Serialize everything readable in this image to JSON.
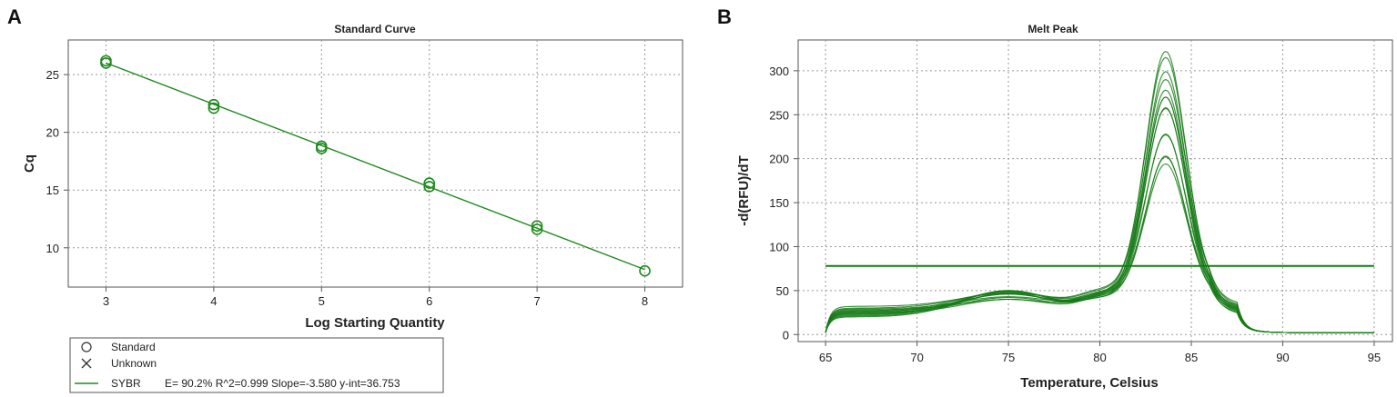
{
  "panels": {
    "a_label": "A",
    "b_label": "B"
  },
  "colors": {
    "series": "#1e8a1e",
    "melt": "#157a15",
    "grid": "#999999",
    "frame": "#555555"
  },
  "chart_data": [
    {
      "type": "scatter",
      "title": "Standard Curve",
      "xlabel": "Log Starting Quantity",
      "ylabel": "Cq",
      "xlim": [
        2.65,
        8.35
      ],
      "ylim": [
        6.6,
        28.0
      ],
      "x_ticks": [
        3,
        4,
        5,
        6,
        7,
        8
      ],
      "y_ticks": [
        10,
        15,
        20,
        25
      ],
      "grid": true,
      "legend_position": "bottom-left",
      "legend": [
        {
          "symbol": "circle",
          "label": "Standard"
        },
        {
          "symbol": "cross",
          "label": "Unknown"
        },
        {
          "symbol": "line",
          "label": "SYBR",
          "detail": "E= 90.2% R^2=0.999 Slope=-3.580 y-int=36.753"
        }
      ],
      "series": [
        {
          "name": "Standard",
          "points": [
            [
              3,
              26.0
            ],
            [
              3,
              26.2
            ],
            [
              4,
              22.1
            ],
            [
              4,
              22.4
            ],
            [
              5,
              18.6
            ],
            [
              5,
              18.8
            ],
            [
              6,
              15.3
            ],
            [
              6,
              15.6
            ],
            [
              7,
              11.6
            ],
            [
              7,
              11.9
            ],
            [
              8,
              8.0
            ]
          ]
        }
      ],
      "fit": {
        "slope": -3.58,
        "intercept": 36.753,
        "x_range": [
          3,
          8
        ]
      }
    },
    {
      "type": "line",
      "title": "Melt Peak",
      "xlabel": "Temperature, Celsius",
      "ylabel": "-d(RFU)/dT",
      "xlim": [
        63.5,
        96
      ],
      "ylim": [
        -8,
        335
      ],
      "x_ticks": [
        65,
        70,
        75,
        80,
        85,
        90,
        95
      ],
      "y_ticks": [
        0,
        50,
        100,
        150,
        200,
        250,
        300
      ],
      "grid": true,
      "threshold": 78,
      "series_x_range": [
        65,
        95
      ],
      "peak_center": 83.6,
      "curves": [
        {
          "peak": 315,
          "base": 25,
          "bump": 22
        },
        {
          "peak": 305,
          "base": 28,
          "bump": 18
        },
        {
          "peak": 295,
          "base": 22,
          "bump": 25
        },
        {
          "peak": 278,
          "base": 30,
          "bump": 15
        },
        {
          "peak": 272,
          "base": 24,
          "bump": 20
        },
        {
          "peak": 268,
          "base": 20,
          "bump": 28
        },
        {
          "peak": 262,
          "base": 26,
          "bump": 12
        },
        {
          "peak": 258,
          "base": 18,
          "bump": 30
        },
        {
          "peak": 252,
          "base": 23,
          "bump": 17
        },
        {
          "peak": 225,
          "base": 21,
          "bump": 24
        },
        {
          "peak": 218,
          "base": 27,
          "bump": 14
        },
        {
          "peak": 202,
          "base": 19,
          "bump": 26
        },
        {
          "peak": 196,
          "base": 24,
          "bump": 20
        },
        {
          "peak": 190,
          "base": 22,
          "bump": 16
        }
      ]
    }
  ]
}
